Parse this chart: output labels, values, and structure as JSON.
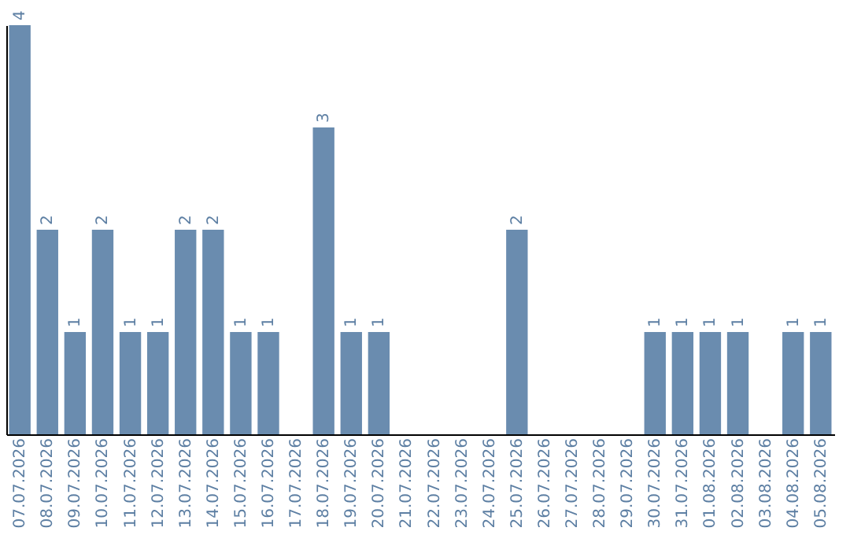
{
  "chart_data": {
    "type": "bar",
    "categories": [
      "07.07.2026",
      "08.07.2026",
      "09.07.2026",
      "10.07.2026",
      "11.07.2026",
      "12.07.2026",
      "13.07.2026",
      "14.07.2026",
      "15.07.2026",
      "16.07.2026",
      "17.07.2026",
      "18.07.2026",
      "19.07.2026",
      "20.07.2026",
      "21.07.2026",
      "22.07.2026",
      "23.07.2026",
      "24.07.2026",
      "25.07.2026",
      "26.07.2026",
      "27.07.2026",
      "28.07.2026",
      "29.07.2026",
      "30.07.2026",
      "31.07.2026",
      "01.08.2026",
      "02.08.2026",
      "03.08.2026",
      "04.08.2026",
      "05.08.2026"
    ],
    "values": [
      4,
      2,
      1,
      2,
      1,
      1,
      2,
      2,
      1,
      1,
      null,
      3,
      1,
      1,
      null,
      null,
      null,
      null,
      2,
      null,
      null,
      null,
      null,
      1,
      1,
      1,
      1,
      null,
      1,
      1
    ],
    "color": "#6a8caf",
    "data_labels": true
  }
}
